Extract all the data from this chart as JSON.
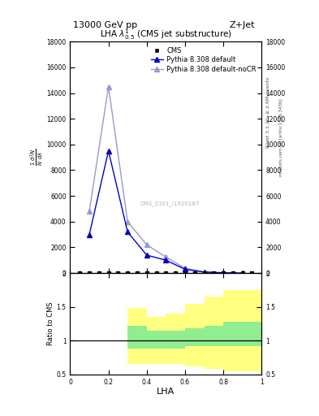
{
  "title_top": "13000 GeV pp",
  "title_right": "Z+Jet",
  "plot_title": "LHA $\\lambda^1_{0.5}$ (CMS jet substructure)",
  "watermark": "CMS_2301_I1920187",
  "rivet_label": "Rivet 3.1.10, ≥ 2.6M events",
  "mcplots_label": "mcplots.cern.ch [arXiv:1306.3436]",
  "xlabel": "LHA",
  "xlim": [
    0,
    1.0
  ],
  "ylim_main": [
    0,
    18000
  ],
  "ylim_ratio": [
    0.5,
    2.0
  ],
  "yticks_main": [
    0,
    2000,
    4000,
    6000,
    8000,
    10000,
    12000,
    14000,
    16000,
    18000
  ],
  "ytick_labels_main": [
    "0",
    "2000",
    "4000",
    "6000",
    "8000",
    "10000",
    "12000",
    "14000",
    "16000",
    "18000"
  ],
  "yticks_ratio": [
    0.5,
    1.0,
    1.5,
    2.0
  ],
  "ytick_labels_ratio": [
    "0.5",
    "1",
    "1.5",
    "2"
  ],
  "cms_x": [
    0.05,
    0.1,
    0.15,
    0.2,
    0.25,
    0.3,
    0.35,
    0.4,
    0.45,
    0.5,
    0.55,
    0.6,
    0.65,
    0.7,
    0.75,
    0.8,
    0.85,
    0.9,
    0.95
  ],
  "cms_y": [
    0,
    0,
    0,
    0,
    0,
    0,
    0,
    0,
    0,
    0,
    0,
    0,
    0,
    0,
    0,
    0,
    0,
    0,
    0
  ],
  "pythia_default_x": [
    0.1,
    0.2,
    0.3,
    0.4,
    0.5,
    0.6,
    0.7,
    0.8,
    0.9
  ],
  "pythia_default_y": [
    3000,
    9500,
    3200,
    1400,
    1000,
    300,
    80,
    25,
    5
  ],
  "pythia_nocr_x": [
    0.1,
    0.2,
    0.3,
    0.4,
    0.5,
    0.6,
    0.7,
    0.8,
    0.9
  ],
  "pythia_nocr_y": [
    4800,
    14500,
    4000,
    2200,
    1250,
    380,
    100,
    30,
    5
  ],
  "green_band_edges": [
    0.0,
    0.2,
    0.3,
    0.4,
    0.5,
    0.6,
    0.7,
    0.8,
    0.9,
    1.0
  ],
  "green_band_low": [
    1.0,
    1.0,
    0.88,
    0.88,
    0.88,
    0.92,
    0.92,
    0.92,
    0.92,
    0.92
  ],
  "green_band_high": [
    1.0,
    1.0,
    1.22,
    1.15,
    1.15,
    1.18,
    1.22,
    1.28,
    1.28,
    1.28
  ],
  "yellow_band_edges": [
    0.0,
    0.2,
    0.3,
    0.4,
    0.5,
    0.6,
    0.7,
    0.8,
    0.9,
    1.0
  ],
  "yellow_band_low": [
    1.0,
    1.0,
    0.65,
    0.65,
    0.65,
    0.62,
    0.58,
    0.55,
    0.55,
    0.55
  ],
  "yellow_band_high": [
    1.0,
    1.0,
    1.48,
    1.35,
    1.4,
    1.55,
    1.65,
    1.75,
    1.75,
    1.75
  ],
  "cms_data_color": "#000000",
  "pythia_default_color": "#0000cc",
  "pythia_nocr_color": "#9999cc",
  "green_band_color": "#90ee90",
  "yellow_band_color": "#ffff80",
  "background_color": "#ffffff"
}
